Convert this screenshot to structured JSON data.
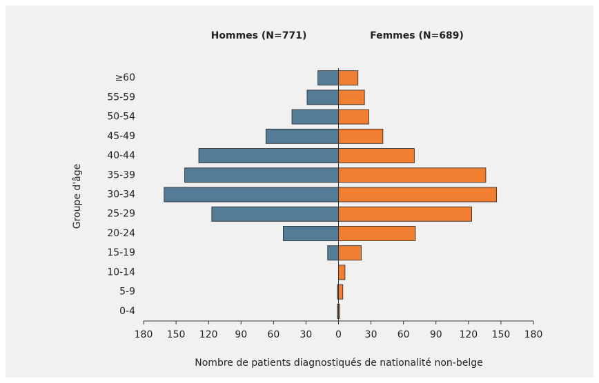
{
  "chart_data": {
    "type": "pyramid",
    "series": [
      {
        "name": "Hommes (N=771)",
        "color": "#557c96",
        "values": [
          1,
          1,
          0,
          10,
          51,
          117,
          161,
          142,
          129,
          67,
          43,
          29,
          19
        ]
      },
      {
        "name": "Femmes (N=689)",
        "color": "#f07f32",
        "values": [
          1,
          4,
          6,
          21,
          71,
          123,
          146,
          136,
          70,
          41,
          28,
          24,
          18
        ]
      }
    ],
    "categories": [
      "0-4",
      "5-9",
      "10-14",
      "15-19",
      "20-24",
      "25-29",
      "30-34",
      "35-39",
      "40-44",
      "45-49",
      "50-54",
      "55-59",
      "≥60"
    ],
    "xlabel": "Nombre de patients diagnostiqués de nationalité non-belge",
    "ylabel": "Groupe d'âge",
    "xlim": [
      -180,
      180
    ],
    "xticks": [
      {
        "value": -180,
        "label": "180"
      },
      {
        "value": -150,
        "label": "150"
      },
      {
        "value": -120,
        "label": "120"
      },
      {
        "value": -90,
        "label": "90"
      },
      {
        "value": -60,
        "label": "60"
      },
      {
        "value": -30,
        "label": "30"
      },
      0,
      30,
      60,
      90,
      120,
      150,
      180
    ]
  }
}
